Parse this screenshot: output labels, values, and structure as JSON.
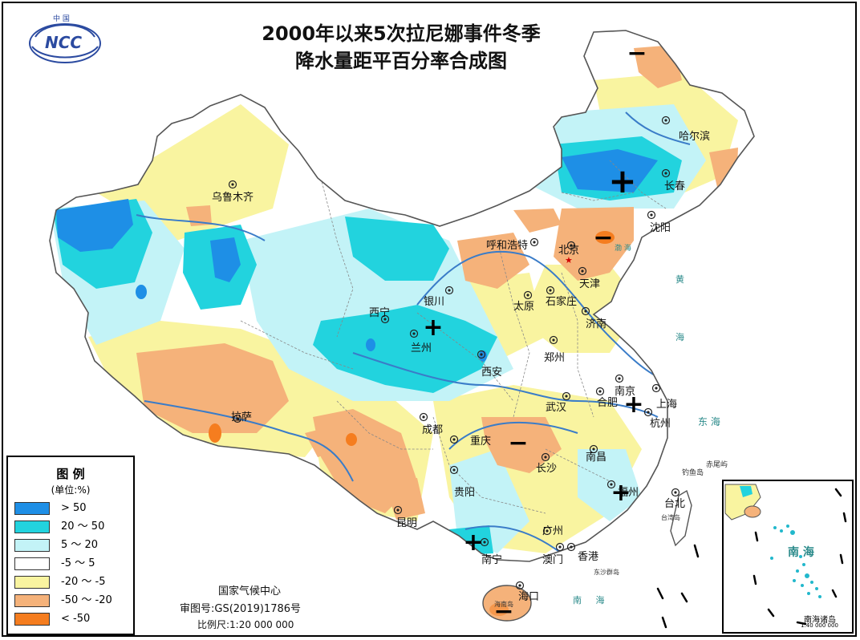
{
  "title": {
    "line1": "2000年以来5次拉尼娜事件冬季",
    "line2": "降水量距平百分率合成图"
  },
  "logo": {
    "text_top": "中 国",
    "text_main": "NCC"
  },
  "legend": {
    "title": "图 例",
    "unit": "(单位:%)",
    "items": [
      {
        "label": "> 50",
        "color": "#1e8fe6"
      },
      {
        "label": "20 ～ 50",
        "color": "#22d3de"
      },
      {
        "label": "5 ～ 20",
        "color": "#c3f3f7"
      },
      {
        "label": "-5 ～ 5",
        "color": "#ffffff"
      },
      {
        "label": "-20 ～ -5",
        "color": "#f9f4a0"
      },
      {
        "label": "-50 ～ -20",
        "color": "#f5b27a"
      },
      {
        "label": "< -50",
        "color": "#f57d1f"
      }
    ]
  },
  "credits": {
    "agency": "国家气候中心",
    "review": "审图号:GS(2019)1786号",
    "scale": "比例尺:1:20 000 000"
  },
  "cities": [
    {
      "name": "乌鲁木齐"
    },
    {
      "name": "哈尔滨"
    },
    {
      "name": "长春"
    },
    {
      "name": "沈阳"
    },
    {
      "name": "呼和浩特"
    },
    {
      "name": "北京"
    },
    {
      "name": "天津"
    },
    {
      "name": "银川"
    },
    {
      "name": "太原"
    },
    {
      "name": "石家庄"
    },
    {
      "name": "西宁"
    },
    {
      "name": "兰州"
    },
    {
      "name": "济南"
    },
    {
      "name": "郑州"
    },
    {
      "name": "西安"
    },
    {
      "name": "南京"
    },
    {
      "name": "合肥"
    },
    {
      "name": "上海"
    },
    {
      "name": "武汉"
    },
    {
      "name": "杭州"
    },
    {
      "name": "拉萨"
    },
    {
      "name": "成都"
    },
    {
      "name": "重庆"
    },
    {
      "name": "长沙"
    },
    {
      "name": "南昌"
    },
    {
      "name": "福州"
    },
    {
      "name": "贵阳"
    },
    {
      "name": "台北"
    },
    {
      "name": "昆明"
    },
    {
      "name": "广州"
    },
    {
      "name": "南宁"
    },
    {
      "name": "澳门"
    },
    {
      "name": "香港"
    },
    {
      "name": "海口"
    }
  ],
  "sea_labels": {
    "east_sea": "东 海",
    "south_sea": "南 海",
    "yellow_sea_1": "黄",
    "yellow_sea_2": "海",
    "bohai": "渤 海",
    "diaoyu": "钓鱼岛",
    "chiwei": "赤尾屿",
    "taiwan": "台湾岛",
    "dongsha": "东沙群岛",
    "hainan": "海南岛",
    "south_sea_bottom": "南     海"
  },
  "inset": {
    "sea_label": "南 海",
    "caption": "南海诸岛",
    "scale": "1:40 000 000"
  },
  "anomaly_marks": [
    {
      "symbol": "−"
    },
    {
      "symbol": "+"
    },
    {
      "symbol": "−"
    },
    {
      "symbol": "+"
    },
    {
      "symbol": "+"
    },
    {
      "symbol": "−"
    },
    {
      "symbol": "+"
    },
    {
      "symbol": "+"
    },
    {
      "symbol": "−"
    }
  ]
}
